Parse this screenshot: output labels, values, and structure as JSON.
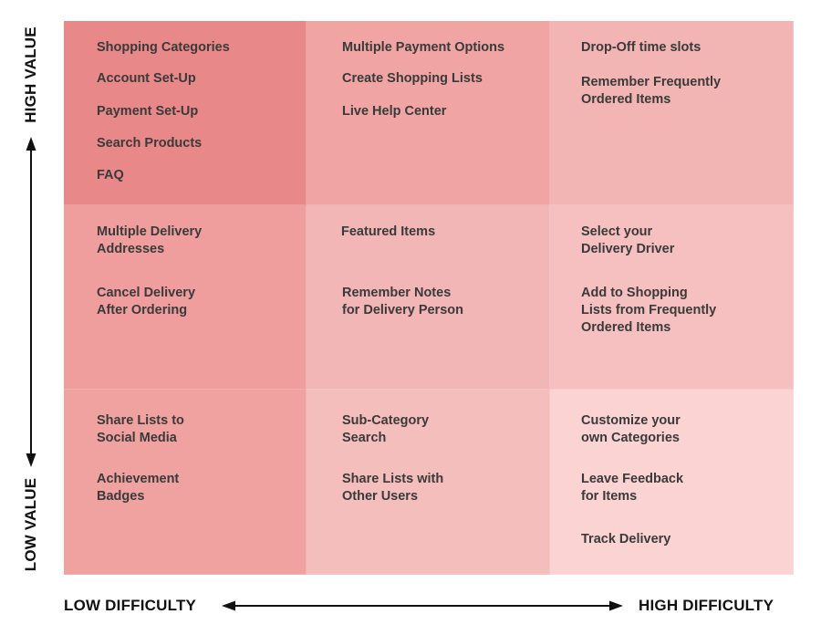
{
  "axes": {
    "y_high": "HIGH VALUE",
    "y_low": "LOW VALUE",
    "x_low": "LOW DIFFICULTY",
    "x_high": "HIGH DIFFICULTY"
  },
  "colors": {
    "r0c0": "#e98888",
    "r0c1": "#f0a4a3",
    "r0c2": "#f3b4b4",
    "r1c0": "#ef9e9d",
    "r1c1": "#f3b6b6",
    "r1c2": "#f6c0c0",
    "r2c0": "#f0a2a1",
    "r2c1": "#f4bebd",
    "r2c2": "#fad3d2",
    "text": "#3a3a3a",
    "axis": "#111111"
  },
  "cells": {
    "r0c0": [
      "Shopping Categories",
      "Account Set-Up",
      "Payment Set-Up",
      "Search Products",
      "FAQ"
    ],
    "r0c1": [
      "Multiple Payment Options",
      "Create Shopping Lists",
      "Live Help Center"
    ],
    "r0c2": [
      "Drop-Off time slots",
      "Remember Frequently\nOrdered Items"
    ],
    "r1c0": [
      "Multiple Delivery\nAddresses",
      "Cancel Delivery\nAfter Ordering"
    ],
    "r1c1": [
      "Featured Items",
      "Remember Notes\nfor Delivery Person"
    ],
    "r1c2": [
      "Select your\nDelivery Driver",
      "Add to Shopping\nLists from Frequently\nOrdered Items"
    ],
    "r2c0": [
      "Share Lists to\nSocial Media",
      "Achievement\nBadges"
    ],
    "r2c1": [
      "Sub-Category\nSearch",
      "Share Lists with\nOther Users"
    ],
    "r2c2": [
      "Customize your\nown Categories",
      "Leave Feedback\nfor Items",
      "Track Delivery"
    ]
  }
}
